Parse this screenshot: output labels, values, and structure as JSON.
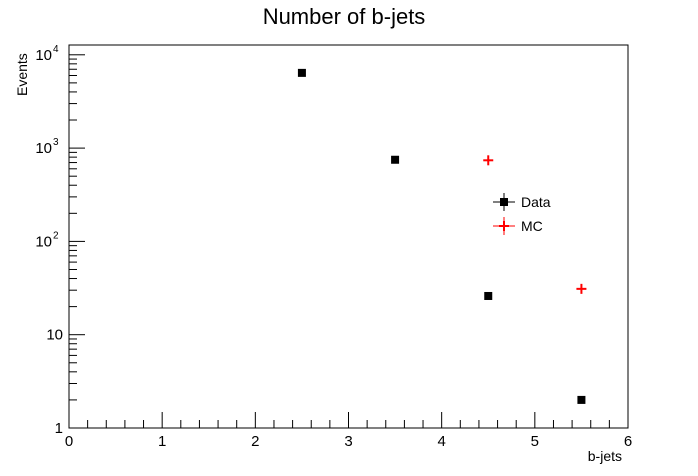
{
  "chart_data": {
    "type": "scatter",
    "title": "Number of b-jets",
    "xlabel": "b-jets",
    "ylabel": "Events",
    "xlim": [
      0,
      6
    ],
    "ylim": [
      1,
      12000
    ],
    "yscale": "log",
    "grid": false,
    "legend_position": "center-right",
    "x_tick_labels": [
      "0",
      "1",
      "2",
      "3",
      "4",
      "5",
      "6"
    ],
    "y_tick_labels": [
      {
        "base": "1",
        "exp": ""
      },
      {
        "base": "10",
        "exp": ""
      },
      {
        "base": "10",
        "exp": "2"
      },
      {
        "base": "10",
        "exp": "3"
      },
      {
        "base": "10",
        "exp": "4"
      }
    ],
    "series": [
      {
        "name": "Data",
        "color": "#000000",
        "marker": "square",
        "x": [
          2.5,
          3.5,
          4.5,
          5.5
        ],
        "y": [
          6400,
          750,
          26,
          2
        ]
      },
      {
        "name": "MC",
        "color": "#ff0000",
        "marker": "cross",
        "x": [
          4.5,
          5.5
        ],
        "y": [
          740,
          31
        ]
      }
    ]
  }
}
